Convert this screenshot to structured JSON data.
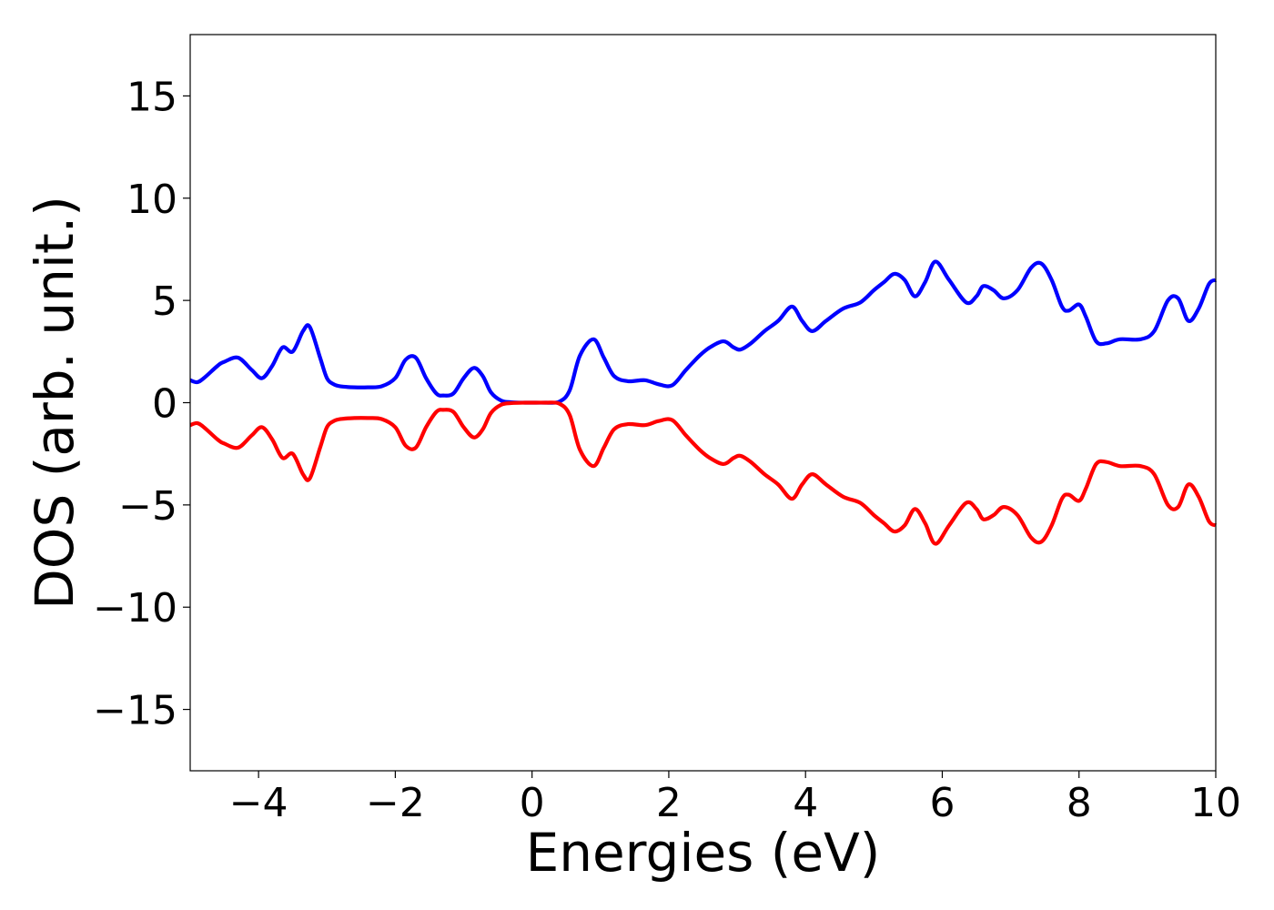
{
  "chart_data": {
    "type": "line",
    "title": "",
    "xlabel": "Energies (eV)",
    "ylabel": "DOS (arb. unit.)",
    "xlim": [
      -5,
      10
    ],
    "ylim": [
      -18,
      18
    ],
    "xticks": [
      -4,
      -2,
      0,
      2,
      4,
      6,
      8,
      10
    ],
    "xtick_labels": [
      "−4",
      "−2",
      "0",
      "2",
      "4",
      "6",
      "8",
      "10"
    ],
    "yticks": [
      -15,
      -10,
      -5,
      0,
      5,
      10,
      15
    ],
    "ytick_labels": [
      "−15",
      "−10",
      "−5",
      "0",
      "5",
      "10",
      "15"
    ],
    "grid": false,
    "series": [
      {
        "color": "#0000ff",
        "x": [
          -5.0,
          -4.9,
          -4.8,
          -4.6,
          -4.5,
          -4.3,
          -4.1,
          -3.95,
          -3.8,
          -3.65,
          -3.5,
          -3.35,
          -3.25,
          -3.1,
          -3.0,
          -2.9,
          -2.8,
          -2.6,
          -2.4,
          -2.2,
          -2.0,
          -1.85,
          -1.7,
          -1.55,
          -1.4,
          -1.3,
          -1.15,
          -1.0,
          -0.85,
          -0.72,
          -0.6,
          -0.45,
          -0.3,
          -0.1,
          0.0,
          0.2,
          0.4,
          0.55,
          0.7,
          0.9,
          1.05,
          1.2,
          1.4,
          1.65,
          1.85,
          2.05,
          2.25,
          2.45,
          2.6,
          2.8,
          2.95,
          3.05,
          3.2,
          3.4,
          3.6,
          3.8,
          3.95,
          4.1,
          4.3,
          4.55,
          4.8,
          5.0,
          5.15,
          5.3,
          5.45,
          5.6,
          5.75,
          5.9,
          6.1,
          6.35,
          6.5,
          6.6,
          6.75,
          6.9,
          7.1,
          7.3,
          7.45,
          7.6,
          7.75,
          7.85,
          8.0,
          8.1,
          8.25,
          8.4,
          8.6,
          8.9,
          9.1,
          9.3,
          9.45,
          9.6,
          9.75,
          9.9,
          10.0
        ],
        "y": [
          1.1,
          1.0,
          1.2,
          1.8,
          2.0,
          2.2,
          1.6,
          1.2,
          1.8,
          2.7,
          2.5,
          3.5,
          3.7,
          2.2,
          1.2,
          0.9,
          0.8,
          0.75,
          0.75,
          0.8,
          1.2,
          2.1,
          2.2,
          1.2,
          0.45,
          0.35,
          0.45,
          1.2,
          1.7,
          1.3,
          0.5,
          0.1,
          0.02,
          0.0,
          0.0,
          0.0,
          0.05,
          0.6,
          2.3,
          3.1,
          2.2,
          1.3,
          1.05,
          1.1,
          0.9,
          0.85,
          1.6,
          2.3,
          2.7,
          3.0,
          2.7,
          2.6,
          2.9,
          3.5,
          4.0,
          4.7,
          4.0,
          3.5,
          4.0,
          4.6,
          4.9,
          5.5,
          5.9,
          6.3,
          6.0,
          5.2,
          5.9,
          6.9,
          6.0,
          4.9,
          5.2,
          5.7,
          5.5,
          5.1,
          5.5,
          6.6,
          6.8,
          6.0,
          4.7,
          4.5,
          4.8,
          4.2,
          3.0,
          2.9,
          3.1,
          3.1,
          3.5,
          5.0,
          5.1,
          4.0,
          4.6,
          5.8,
          6.0
        ]
      },
      {
        "color": "#ff0000",
        "x": [
          -5.0,
          -4.9,
          -4.8,
          -4.6,
          -4.5,
          -4.3,
          -4.1,
          -3.95,
          -3.8,
          -3.65,
          -3.5,
          -3.35,
          -3.25,
          -3.1,
          -3.0,
          -2.9,
          -2.8,
          -2.6,
          -2.4,
          -2.2,
          -2.0,
          -1.85,
          -1.7,
          -1.55,
          -1.4,
          -1.3,
          -1.15,
          -1.0,
          -0.85,
          -0.72,
          -0.6,
          -0.45,
          -0.3,
          -0.1,
          0.0,
          0.2,
          0.4,
          0.55,
          0.7,
          0.9,
          1.05,
          1.2,
          1.4,
          1.65,
          1.85,
          2.05,
          2.25,
          2.45,
          2.6,
          2.8,
          2.95,
          3.05,
          3.2,
          3.4,
          3.6,
          3.8,
          3.95,
          4.1,
          4.3,
          4.55,
          4.8,
          5.0,
          5.15,
          5.3,
          5.45,
          5.6,
          5.75,
          5.9,
          6.1,
          6.35,
          6.5,
          6.6,
          6.75,
          6.9,
          7.1,
          7.3,
          7.45,
          7.6,
          7.75,
          7.85,
          8.0,
          8.1,
          8.25,
          8.4,
          8.6,
          8.9,
          9.1,
          9.3,
          9.45,
          9.6,
          9.75,
          9.9,
          10.0
        ],
        "y": [
          -1.1,
          -1.0,
          -1.2,
          -1.8,
          -2.0,
          -2.2,
          -1.6,
          -1.2,
          -1.8,
          -2.7,
          -2.5,
          -3.5,
          -3.7,
          -2.2,
          -1.2,
          -0.9,
          -0.8,
          -0.75,
          -0.75,
          -0.8,
          -1.2,
          -2.1,
          -2.2,
          -1.2,
          -0.45,
          -0.35,
          -0.45,
          -1.2,
          -1.7,
          -1.3,
          -0.5,
          -0.1,
          -0.02,
          0.0,
          0.0,
          0.0,
          -0.05,
          -0.6,
          -2.3,
          -3.1,
          -2.2,
          -1.3,
          -1.05,
          -1.1,
          -0.9,
          -0.85,
          -1.6,
          -2.3,
          -2.7,
          -3.0,
          -2.7,
          -2.6,
          -2.9,
          -3.5,
          -4.0,
          -4.7,
          -4.0,
          -3.5,
          -4.0,
          -4.6,
          -4.9,
          -5.5,
          -5.9,
          -6.3,
          -6.0,
          -5.2,
          -5.9,
          -6.9,
          -6.0,
          -4.9,
          -5.2,
          -5.7,
          -5.5,
          -5.1,
          -5.5,
          -6.6,
          -6.8,
          -6.0,
          -4.7,
          -4.5,
          -4.8,
          -4.2,
          -3.0,
          -2.9,
          -3.1,
          -3.1,
          -3.5,
          -5.0,
          -5.1,
          -4.0,
          -4.6,
          -5.8,
          -6.0
        ]
      }
    ]
  }
}
